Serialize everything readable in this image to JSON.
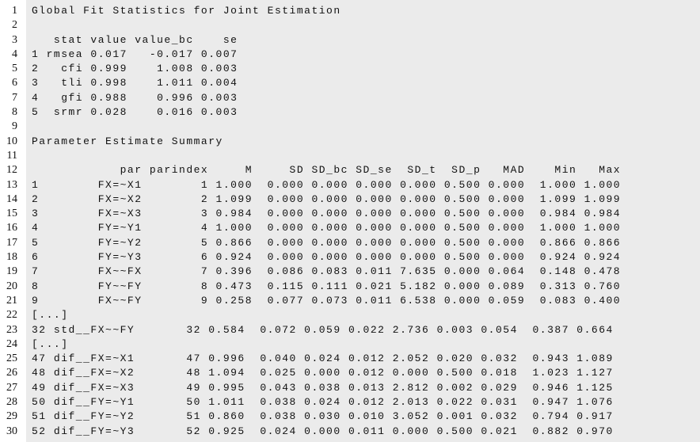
{
  "lines": [
    {
      "number": "1",
      "text": "Global Fit Statistics for Joint Estimation"
    },
    {
      "number": "2"
    },
    {
      "number": "3",
      "text": "   stat value value_bc    se"
    },
    {
      "number": "4",
      "text": "1 rmsea 0.017   -0.017 0.007"
    },
    {
      "number": "5",
      "text": "2   cfi 0.999    1.008 0.003"
    },
    {
      "number": "6",
      "text": "3   tli 0.998    1.011 0.004"
    },
    {
      "number": "7",
      "text": "4   gfi 0.988    0.996 0.003"
    },
    {
      "number": "8",
      "text": "5  srmr 0.028    0.016 0.003"
    },
    {
      "number": "9"
    },
    {
      "number": "10",
      "text": "Parameter Estimate Summary"
    },
    {
      "number": "11"
    },
    {
      "number": "12",
      "text": "            par parindex     M     SD SD_bc SD_se  SD_t  SD_p   MAD    Min   Max"
    },
    {
      "number": "13",
      "text": "1        FX=~X1        1 1.000  0.000 0.000 0.000 0.000 0.500 0.000  1.000 1.000"
    },
    {
      "number": "14",
      "text": "2        FX=~X2        2 1.099  0.000 0.000 0.000 0.000 0.500 0.000  1.099 1.099"
    },
    {
      "number": "15",
      "text": "3        FX=~X3        3 0.984  0.000 0.000 0.000 0.000 0.500 0.000  0.984 0.984"
    },
    {
      "number": "16",
      "text": "4        FY=~Y1        4 1.000  0.000 0.000 0.000 0.000 0.500 0.000  1.000 1.000"
    },
    {
      "number": "17",
      "text": "5        FY=~Y2        5 0.866  0.000 0.000 0.000 0.000 0.500 0.000  0.866 0.866"
    },
    {
      "number": "18",
      "text": "6        FY=~Y3        6 0.924  0.000 0.000 0.000 0.000 0.500 0.000  0.924 0.924"
    },
    {
      "number": "19",
      "text": "7        FX~~FX        7 0.396  0.086 0.083 0.011 7.635 0.000 0.064  0.148 0.478"
    },
    {
      "number": "20",
      "text": "8        FY~~FY        8 0.473  0.115 0.111 0.021 5.182 0.000 0.089  0.313 0.760"
    },
    {
      "number": "21",
      "text": "9        FX~~FY        9 0.258  0.077 0.073 0.011 6.538 0.000 0.059  0.083 0.400"
    },
    {
      "number": "22",
      "text": "[...]"
    },
    {
      "number": "23",
      "text": "32 std__FX~~FY       32 0.584  0.072 0.059 0.022 2.736 0.003 0.054  0.387 0.664"
    },
    {
      "number": "24",
      "text": "[...]"
    },
    {
      "number": "25",
      "text": "47 dif__FX=~X1       47 0.996  0.040 0.024 0.012 2.052 0.020 0.032  0.943 1.089"
    },
    {
      "number": "26",
      "text": "48 dif__FX=~X2       48 1.094  0.025 0.000 0.012 0.000 0.500 0.018  1.023 1.127"
    },
    {
      "number": "27",
      "text": "49 dif__FX=~X3       49 0.995  0.043 0.038 0.013 2.812 0.002 0.029  0.946 1.125"
    },
    {
      "number": "28",
      "text": "50 dif__FY=~Y1       50 1.011  0.038 0.024 0.012 2.013 0.022 0.031  0.947 1.076"
    },
    {
      "number": "29",
      "text": "51 dif__FY=~Y2       51 0.860  0.038 0.030 0.010 3.052 0.001 0.032  0.794 0.917"
    },
    {
      "number": "30",
      "text": "52 dif__FY=~Y3       52 0.925  0.024 0.000 0.011 0.000 0.500 0.021  0.882 0.970"
    }
  ]
}
